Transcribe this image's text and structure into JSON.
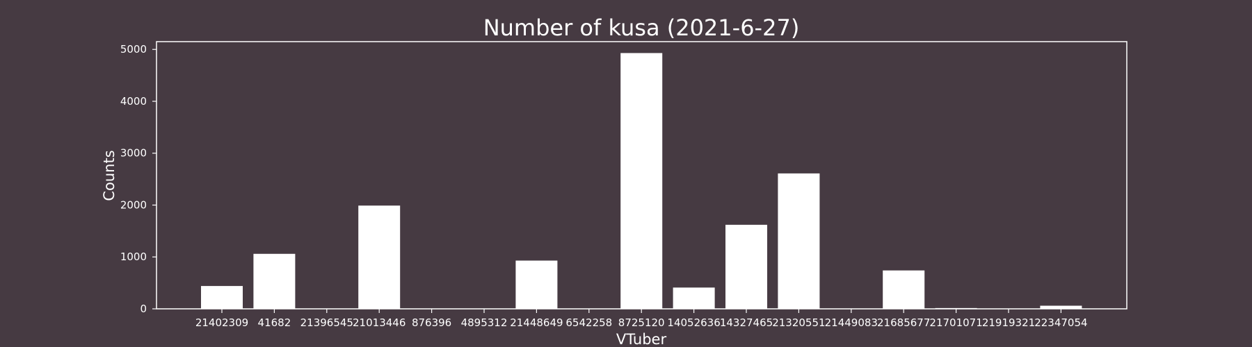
{
  "colors": {
    "background": "#463a42",
    "bars": "#ffffff",
    "text": "#ffffff"
  },
  "chart_data": {
    "type": "bar",
    "title": "Number of kusa (2021-6-27)",
    "xlabel": "VTuber",
    "ylabel": "Counts",
    "ylim": [
      0,
      5150
    ],
    "yticks": [
      0,
      1000,
      2000,
      3000,
      4000,
      5000
    ],
    "grid": false,
    "categories": [
      "21402309",
      "41682",
      "21396545",
      "21013446",
      "876396",
      "4895312",
      "21448649",
      "6542258",
      "8725120",
      "14052636",
      "14327465",
      "21320551",
      "21449083",
      "21685677",
      "21701071",
      "21919321",
      "22347054"
    ],
    "values": [
      440,
      1060,
      0,
      1990,
      0,
      0,
      930,
      0,
      4930,
      410,
      1620,
      2610,
      0,
      740,
      15,
      0,
      60
    ]
  }
}
